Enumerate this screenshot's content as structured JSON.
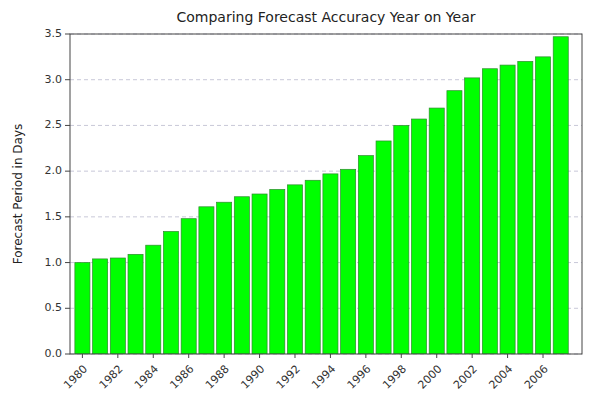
{
  "chart_data": {
    "type": "bar",
    "title": "Comparing Forecast Accuracy Year on Year",
    "ylabel": "Forecast Period in Days",
    "x": [
      1980,
      1981,
      1982,
      1983,
      1984,
      1985,
      1986,
      1987,
      1988,
      1989,
      1990,
      1991,
      1992,
      1993,
      1994,
      1995,
      1996,
      1997,
      1998,
      1999,
      2000,
      2001,
      2002,
      2003,
      2004,
      2005,
      2006,
      2007
    ],
    "values": [
      1.0,
      1.04,
      1.05,
      1.09,
      1.19,
      1.34,
      1.48,
      1.61,
      1.66,
      1.72,
      1.75,
      1.8,
      1.85,
      1.9,
      1.97,
      2.02,
      2.17,
      2.33,
      2.5,
      2.57,
      2.69,
      2.88,
      3.02,
      3.12,
      3.16,
      3.2,
      3.25,
      3.47
    ],
    "color": "#00FF00",
    "xlim": [
      1979.3,
      2008.2
    ],
    "xticks": [
      1980,
      1982,
      1984,
      1986,
      1988,
      1990,
      1992,
      1994,
      1996,
      1998,
      2000,
      2002,
      2004,
      2006
    ],
    "ylim": [
      0,
      3.5
    ],
    "yticks": [
      {
        "value": 0,
        "label": "0.0"
      },
      0.5,
      {
        "value": 1.0,
        "label": "1.0"
      },
      1.5,
      {
        "value": 2.0,
        "label": "2.0"
      },
      2.5,
      {
        "value": 3.0,
        "label": "3.0"
      },
      3.5
    ],
    "grid": true
  }
}
